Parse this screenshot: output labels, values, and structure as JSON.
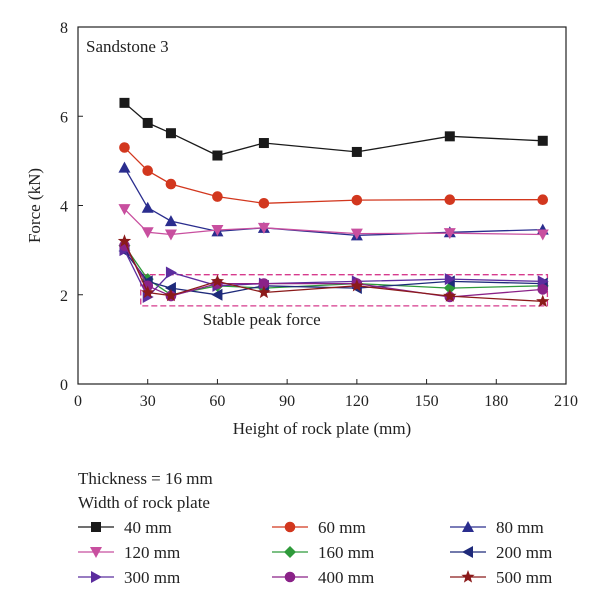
{
  "chart_data": {
    "type": "line",
    "panel_label": "Sandstone 3",
    "xlabel": "Height of rock plate (mm)",
    "ylabel": "Force (kN)",
    "xlim": [
      0,
      210
    ],
    "ylim": [
      0,
      8
    ],
    "xticks": [
      0,
      30,
      60,
      90,
      120,
      150,
      180,
      210
    ],
    "yticks": [
      0,
      2,
      4,
      6,
      8
    ],
    "grid": false,
    "annotation": {
      "text": "Stable peak force",
      "box": {
        "x": [
          27,
          202
        ],
        "y": [
          1.75,
          2.45
        ]
      },
      "color": "#d63a8c"
    },
    "legend": {
      "placement": "below plot",
      "title_lines": [
        "Thickness = 16 mm",
        "Width of rock plate"
      ]
    },
    "x": [
      20,
      30,
      40,
      60,
      80,
      120,
      160,
      200
    ],
    "series": [
      {
        "name": "40 mm",
        "color": "#1a1a1a",
        "marker": "square",
        "values": [
          6.3,
          5.85,
          5.62,
          5.12,
          5.4,
          5.2,
          5.55,
          5.45
        ]
      },
      {
        "name": "60 mm",
        "color": "#d2371e",
        "marker": "circle",
        "values": [
          5.3,
          4.78,
          4.48,
          4.2,
          4.05,
          4.12,
          4.13,
          4.13
        ]
      },
      {
        "name": "80 mm",
        "color": "#2a2d8e",
        "marker": "triangle-up",
        "values": [
          4.85,
          3.95,
          3.65,
          3.42,
          3.5,
          3.33,
          3.4,
          3.46
        ]
      },
      {
        "name": "120 mm",
        "color": "#c84f9f",
        "marker": "triangle-down",
        "values": [
          3.92,
          3.4,
          3.35,
          3.45,
          3.5,
          3.37,
          3.38,
          3.35
        ]
      },
      {
        "name": "160 mm",
        "color": "#2e9a3a",
        "marker": "diamond",
        "values": [
          3.1,
          2.35,
          2.0,
          2.2,
          2.15,
          2.25,
          2.15,
          2.2
        ]
      },
      {
        "name": "200 mm",
        "color": "#1e2a7a",
        "marker": "triangle-left",
        "values": [
          2.98,
          2.3,
          2.15,
          2.0,
          2.2,
          2.15,
          2.3,
          2.25
        ]
      },
      {
        "name": "300 mm",
        "color": "#5b2d9e",
        "marker": "triangle-right",
        "values": [
          3.0,
          1.95,
          2.5,
          2.2,
          2.25,
          2.3,
          2.35,
          2.3
        ]
      },
      {
        "name": "400 mm",
        "color": "#8a2288",
        "marker": "circle",
        "values": [
          3.1,
          2.2,
          1.97,
          2.25,
          2.25,
          2.25,
          1.95,
          2.12
        ]
      },
      {
        "name": "500 mm",
        "color": "#8b1a1a",
        "marker": "star",
        "values": [
          3.2,
          2.05,
          1.98,
          2.3,
          2.05,
          2.2,
          1.97,
          1.85
        ]
      }
    ]
  }
}
